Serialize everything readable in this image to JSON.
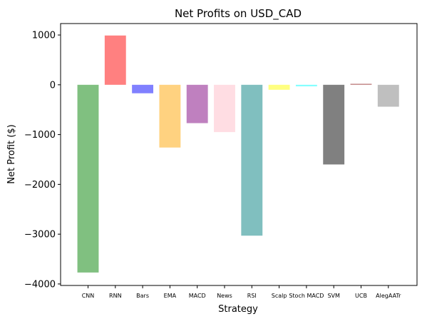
{
  "chart_data": {
    "type": "bar",
    "title": "Net Profits on USD_CAD",
    "xlabel": "Strategy",
    "ylabel": "Net Profit ($)",
    "ylim": [
      -4030,
      1230
    ],
    "yticks": [
      -4000,
      -3000,
      -2000,
      -1000,
      0,
      1000
    ],
    "ytick_labels": [
      "−4000",
      "−3000",
      "−2000",
      "−1000",
      "0",
      "1000"
    ],
    "categories": [
      "CNN",
      "RNN",
      "Bars",
      "EMA",
      "MACD",
      "News",
      "RSI",
      "Scalp",
      "Stoch MACD",
      "SVM",
      "UCB",
      "AlegAATr"
    ],
    "values": [
      -3770,
      990,
      -170,
      -1260,
      -770,
      -950,
      -3030,
      -100,
      -30,
      -1600,
      20,
      -440
    ],
    "colors": [
      "#80c080",
      "#ff8080",
      "#8080ff",
      "#ffd280",
      "#bf80bf",
      "#ffdde3",
      "#80bfbf",
      "#ffff80",
      "#80ffff",
      "#808080",
      "#bf8080",
      "#bfbfbf"
    ],
    "grid": false,
    "legend": "none"
  }
}
